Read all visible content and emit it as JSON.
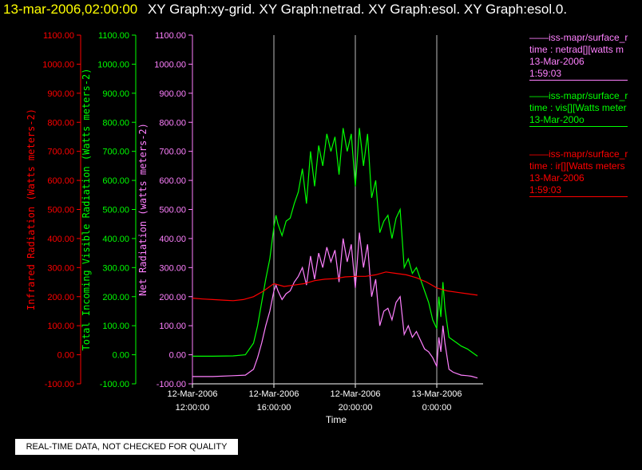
{
  "header": {
    "date": "13-mar-2006,02:00:00",
    "graphs": "XY Graph:xy-grid.  XY Graph:netrad.  XY Graph:esol.  XY Graph:esol.0."
  },
  "legend": [
    {
      "line1": "——iss-mapr/surface_r",
      "line2": "time : netrad[][watts m",
      "line3": "13-Mar-2006",
      "line4": "1:59:03",
      "color": "#ff80ff"
    },
    {
      "line1": "——iss-mapr/surface_r",
      "line2": "time : vis[][Watts meter",
      "line3": "13-Mar-200o",
      "line4": "",
      "color": "#00ff00"
    },
    {
      "line1": "——iss-mapr/surface_r",
      "line2": "time : ir[][Watts meters",
      "line3": "13-Mar-2006",
      "line4": "1:59:03",
      "color": "#ff0000"
    }
  ],
  "footer_note": "REAL-TIME DATA, NOT CHECKED FOR QUALITY",
  "chart_data": {
    "type": "line",
    "xlabel": "Time",
    "x_ticks": [
      {
        "t": 12,
        "line1": "12-Mar-2006",
        "line2": "12:00:00"
      },
      {
        "t": 16,
        "line1": "12-Mar-2006",
        "line2": "16:00:00"
      },
      {
        "t": 20,
        "line1": "12-Mar-2006",
        "line2": "20:00:00"
      },
      {
        "t": 24,
        "line1": "13-Mar-2006",
        "line2": "0:00:00"
      }
    ],
    "xlim": [
      12,
      26
    ],
    "ylim": [
      -100,
      1100
    ],
    "y_ticks": [
      -100,
      0,
      100,
      200,
      300,
      400,
      500,
      600,
      700,
      800,
      900,
      1000,
      1100
    ],
    "axes": [
      {
        "label": "Infrared Radiation (Watts meters-2)",
        "color": "#ff0000"
      },
      {
        "label": "Total Incoming Visible Radiation (Watts meters-2)",
        "color": "#00ff00"
      },
      {
        "label": "Net Radiation (watts meters-2)",
        "color": "#ff80ff"
      }
    ],
    "grid": "vertical lines at x ticks",
    "series": [
      {
        "color": "#00ff00",
        "x": [
          12.0,
          13.0,
          14.0,
          14.6,
          15.0,
          15.2,
          15.4,
          15.6,
          15.8,
          16.0,
          16.1,
          16.2,
          16.4,
          16.6,
          16.8,
          17.0,
          17.2,
          17.4,
          17.6,
          17.8,
          18.0,
          18.2,
          18.4,
          18.6,
          18.8,
          19.0,
          19.2,
          19.4,
          19.6,
          19.8,
          20.0,
          20.2,
          20.4,
          20.6,
          20.8,
          21.0,
          21.2,
          21.4,
          21.6,
          21.8,
          22.0,
          22.2,
          22.4,
          22.6,
          22.8,
          23.0,
          23.2,
          23.4,
          23.6,
          23.8,
          24.0,
          24.1,
          24.2,
          24.3,
          24.4,
          24.6,
          24.8,
          25.0,
          25.2,
          25.5,
          25.7,
          26.0
        ],
        "y": [
          -5,
          -5,
          -4,
          0,
          40,
          100,
          180,
          260,
          330,
          440,
          480,
          450,
          410,
          460,
          470,
          520,
          560,
          640,
          520,
          700,
          580,
          720,
          650,
          760,
          700,
          750,
          620,
          780,
          700,
          760,
          580,
          780,
          650,
          760,
          540,
          600,
          420,
          460,
          480,
          400,
          470,
          500,
          300,
          330,
          280,
          300,
          260,
          220,
          180,
          120,
          90,
          200,
          130,
          250,
          160,
          60,
          50,
          40,
          30,
          20,
          10,
          -5
        ]
      },
      {
        "color": "#ff80ff",
        "x": [
          12.0,
          13.0,
          14.0,
          14.6,
          15.0,
          15.2,
          15.4,
          15.6,
          15.8,
          16.0,
          16.1,
          16.2,
          16.4,
          16.6,
          16.8,
          17.0,
          17.2,
          17.4,
          17.6,
          17.8,
          18.0,
          18.2,
          18.4,
          18.6,
          18.8,
          19.0,
          19.2,
          19.4,
          19.6,
          19.8,
          20.0,
          20.2,
          20.4,
          20.6,
          20.8,
          21.0,
          21.2,
          21.4,
          21.6,
          21.8,
          22.0,
          22.2,
          22.4,
          22.6,
          22.8,
          23.0,
          23.2,
          23.4,
          23.6,
          23.8,
          24.0,
          24.1,
          24.2,
          24.3,
          24.4,
          24.6,
          24.8,
          25.0,
          25.2,
          25.5,
          25.7,
          26.0
        ],
        "y": [
          -75,
          -75,
          -72,
          -70,
          -50,
          -10,
          40,
          100,
          150,
          220,
          240,
          220,
          190,
          210,
          220,
          250,
          270,
          300,
          240,
          340,
          260,
          350,
          300,
          370,
          320,
          360,
          250,
          400,
          320,
          380,
          230,
          420,
          300,
          380,
          200,
          260,
          100,
          150,
          160,
          120,
          180,
          200,
          70,
          100,
          60,
          80,
          50,
          20,
          10,
          -10,
          -40,
          60,
          10,
          100,
          40,
          -50,
          -60,
          -65,
          -70,
          -72,
          -74,
          -80
        ]
      },
      {
        "color": "#ff0000",
        "x": [
          12.0,
          12.5,
          13.0,
          13.5,
          14.0,
          14.5,
          15.0,
          15.5,
          16.0,
          16.5,
          17.0,
          17.5,
          18.0,
          18.5,
          19.0,
          19.5,
          20.0,
          20.5,
          21.0,
          21.5,
          22.0,
          22.5,
          23.0,
          23.5,
          24.0,
          24.5,
          25.0,
          25.5,
          26.0
        ],
        "y": [
          195,
          192,
          190,
          188,
          186,
          190,
          200,
          220,
          245,
          235,
          240,
          245,
          255,
          260,
          262,
          268,
          270,
          270,
          275,
          285,
          280,
          275,
          265,
          250,
          230,
          220,
          215,
          210,
          205
        ]
      }
    ]
  }
}
